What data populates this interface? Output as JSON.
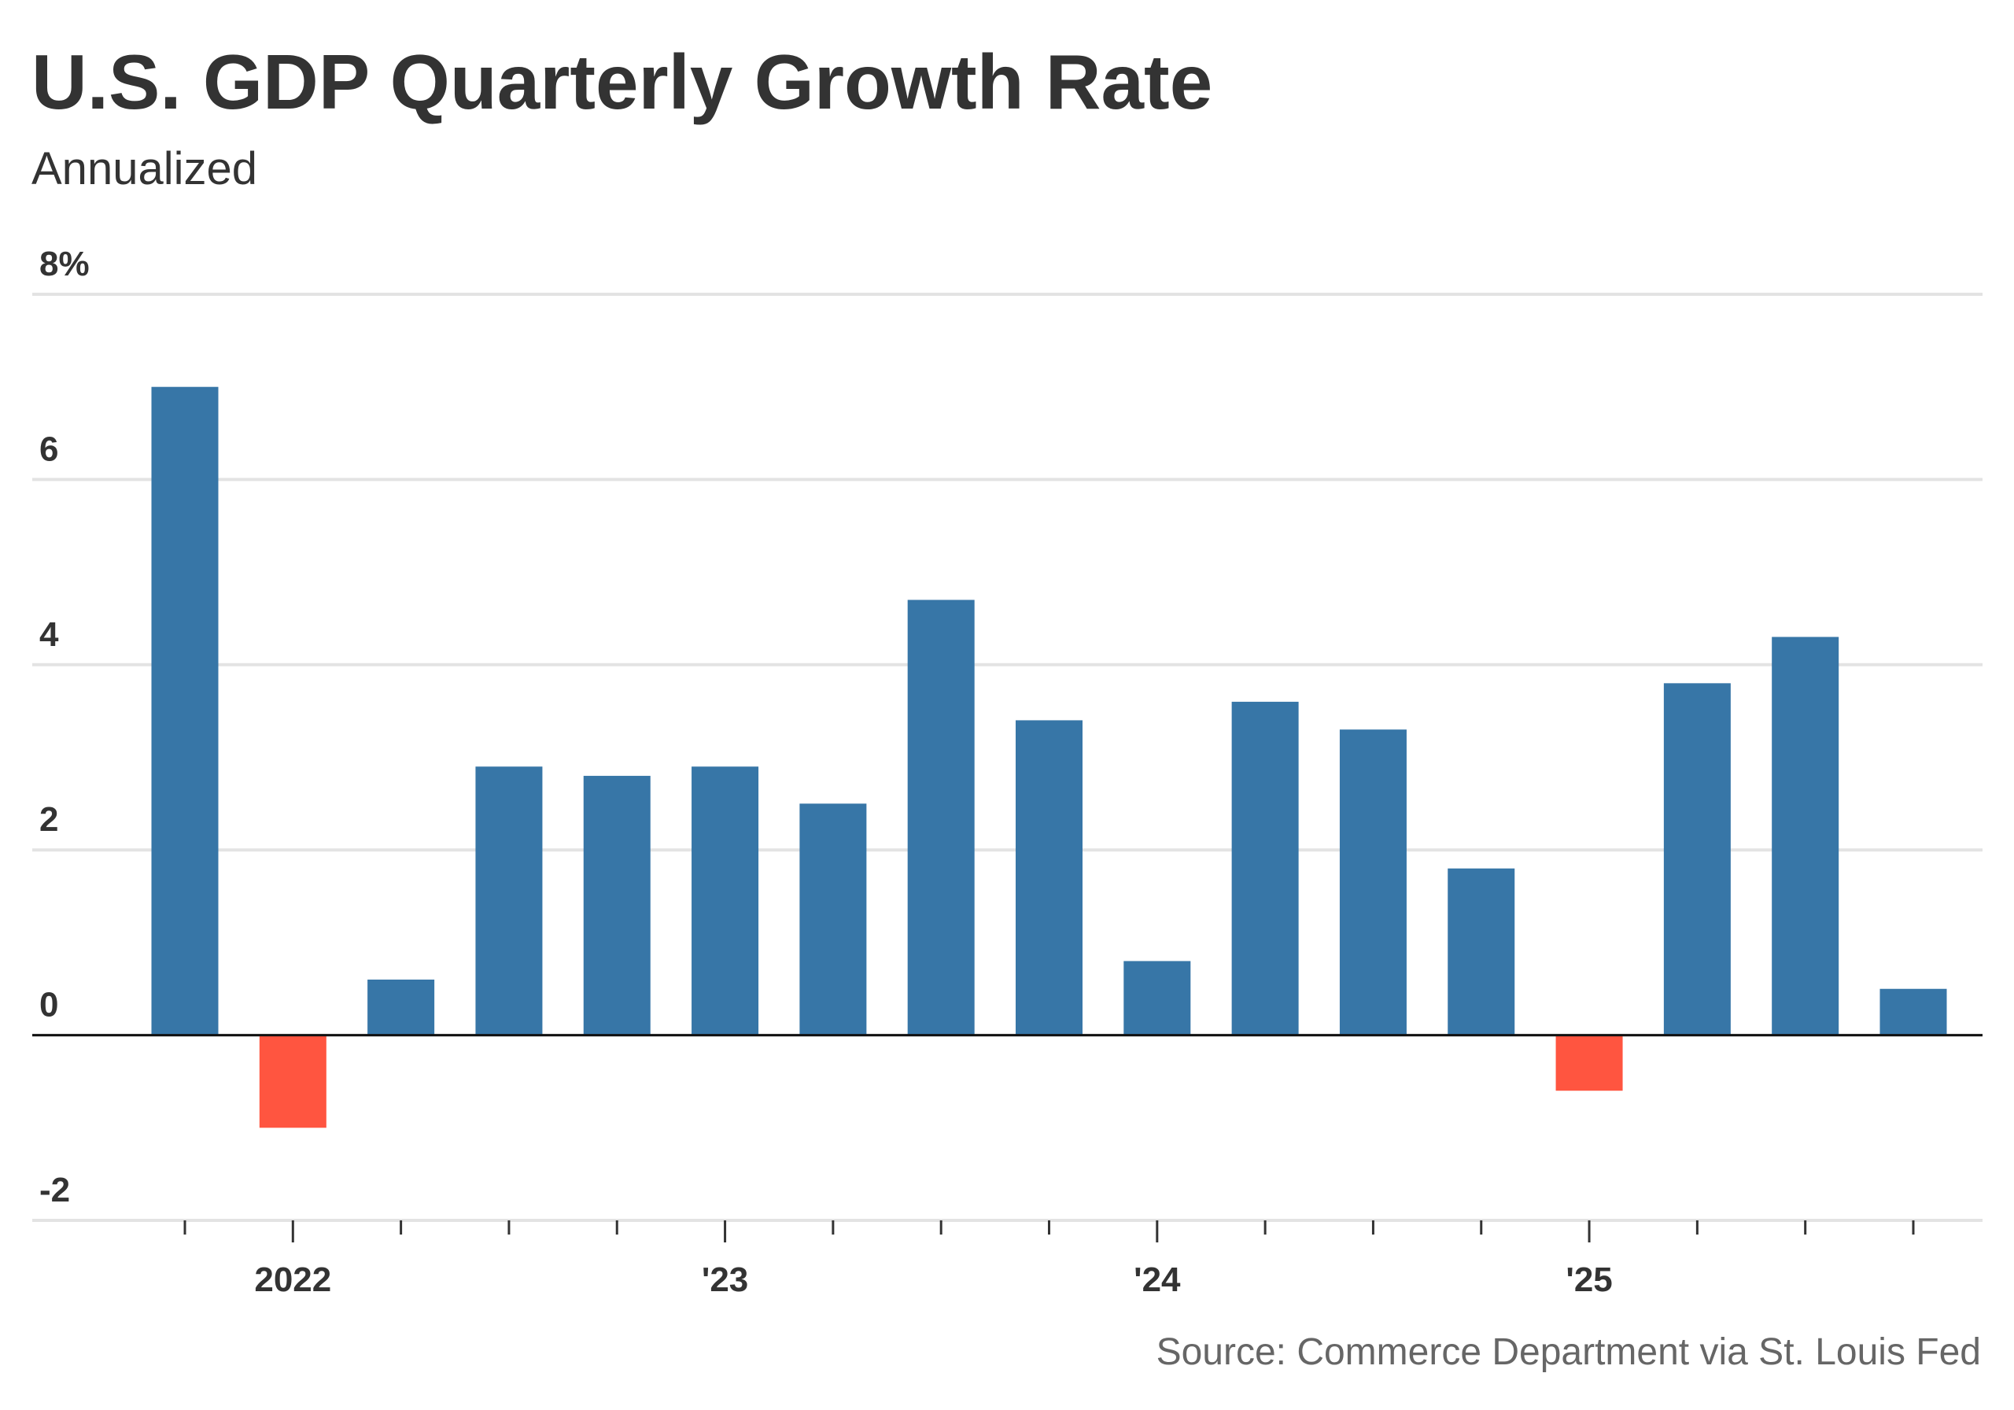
{
  "chart_data": {
    "type": "bar",
    "title": "U.S. GDP Quarterly Growth Rate",
    "subtitle": "Annualized",
    "source": "Source: Commerce Department via St. Louis Fed",
    "categories": [
      null,
      "2022",
      null,
      null,
      null,
      "'23",
      null,
      null,
      null,
      "'24",
      null,
      null,
      null,
      "'25",
      null,
      null,
      null
    ],
    "values": [
      7.0,
      -1.0,
      0.6,
      2.9,
      2.8,
      2.9,
      2.5,
      4.7,
      3.4,
      0.8,
      3.6,
      3.3,
      1.8,
      -0.6,
      3.8,
      4.3,
      0.5
    ],
    "color": "#3776a7",
    "negative_color": "#ff5540",
    "ylim": [
      -2,
      8
    ],
    "yticks": [
      -2,
      0,
      2,
      4,
      6,
      {
        "value": 8,
        "label": "8%"
      }
    ],
    "grid": true
  }
}
